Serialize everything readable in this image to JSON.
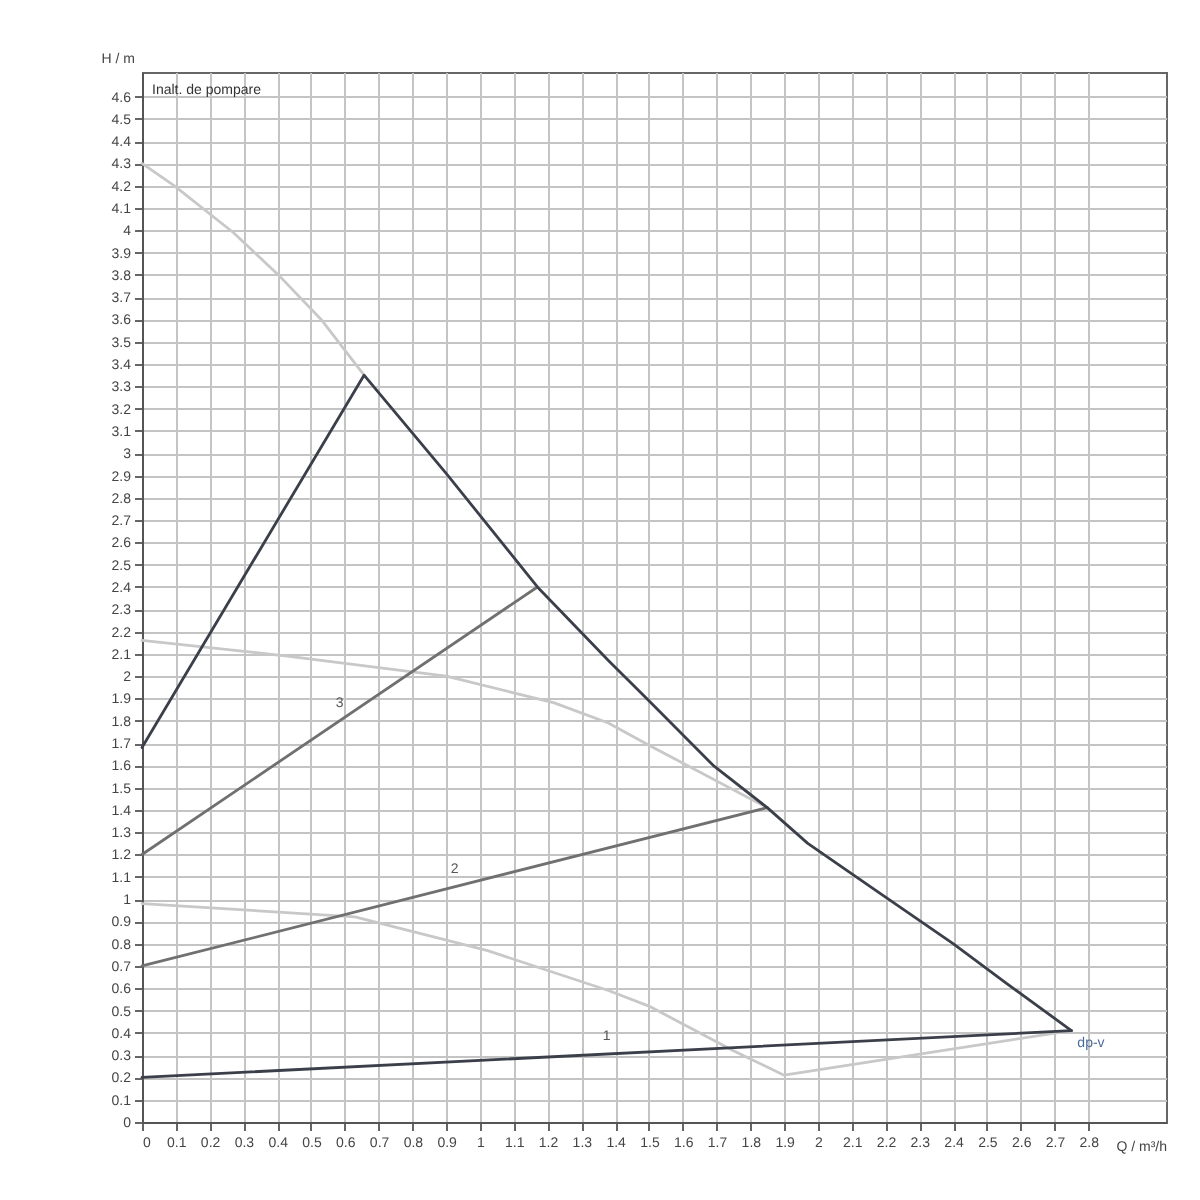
{
  "chart_data": {
    "type": "line",
    "xlabel": "Q / m³/h",
    "ylabel": "H / m",
    "xlim": [
      0,
      3.03
    ],
    "ylim": [
      0,
      4.71
    ],
    "xticks": [
      0,
      0.1,
      0.2,
      0.3,
      0.4,
      0.5,
      0.6,
      0.7,
      0.8,
      0.9,
      1,
      1.1,
      1.2,
      1.3,
      1.4,
      1.5,
      1.6,
      1.7,
      1.8,
      1.9,
      2,
      2.1,
      2.2,
      2.3,
      2.4,
      2.5,
      2.6,
      2.7,
      2.8
    ],
    "yticks": [
      0,
      0.1,
      0.2,
      0.3,
      0.4,
      0.5,
      0.6,
      0.7,
      0.8,
      0.9,
      1,
      1.1,
      1.2,
      1.3,
      1.4,
      1.5,
      1.6,
      1.7,
      1.8,
      1.9,
      2,
      2.1,
      2.2,
      2.3,
      2.4,
      2.5,
      2.6,
      2.7,
      2.8,
      2.9,
      3,
      3.1,
      3.2,
      3.3,
      3.4,
      3.5,
      3.6,
      3.7,
      3.8,
      3.9,
      4,
      4.1,
      4.2,
      4.3,
      4.4,
      4.5,
      4.6
    ],
    "grid": true,
    "legend": false,
    "series": [
      {
        "color": "#c8c8c8",
        "x": [
          0,
          0.095,
          0.27,
          0.41,
          0.53,
          0.657
        ],
        "values": [
          4.3,
          4.2,
          3.99,
          3.79,
          3.6,
          3.35
        ]
      },
      {
        "color": "#c8c8c8",
        "x": [
          0,
          0.43,
          0.9,
          1.22,
          1.38,
          1.5,
          1.85
        ],
        "values": [
          2.16,
          2.09,
          2.0,
          1.88,
          1.79,
          1.69,
          1.41
        ]
      },
      {
        "color": "#c8c8c8",
        "x": [
          0,
          0.63,
          1.02,
          1.38,
          1.5,
          1.75,
          1.9,
          2.75
        ],
        "values": [
          0.98,
          0.92,
          0.77,
          0.59,
          0.52,
          0.32,
          0.21,
          0.41
        ]
      },
      {
        "name": "3",
        "color": "#707070",
        "x": [
          0,
          1.17
        ],
        "values": [
          1.2,
          2.4
        ]
      },
      {
        "name": "2",
        "color": "#707070",
        "x": [
          0,
          1.85
        ],
        "values": [
          0.7,
          1.41
        ]
      },
      {
        "name": "1",
        "color": "#3a3f4a",
        "x": [
          0,
          2.75
        ],
        "values": [
          0.2,
          0.41
        ]
      },
      {
        "color": "#3a3f4a",
        "x": [
          0,
          0.657,
          0.9,
          1.17,
          1.38,
          1.5,
          1.69,
          1.85,
          1.97,
          2.17,
          2.4,
          2.56,
          2.75
        ],
        "values": [
          1.68,
          3.35,
          2.91,
          2.4,
          2.07,
          1.89,
          1.6,
          1.41,
          1.25,
          1.04,
          0.8,
          0.62,
          0.41
        ]
      }
    ],
    "annotations": [
      "Inalt. de pompare",
      {
        "text": "dp-v",
        "x": 2.75,
        "y": 0.41
      }
    ]
  }
}
